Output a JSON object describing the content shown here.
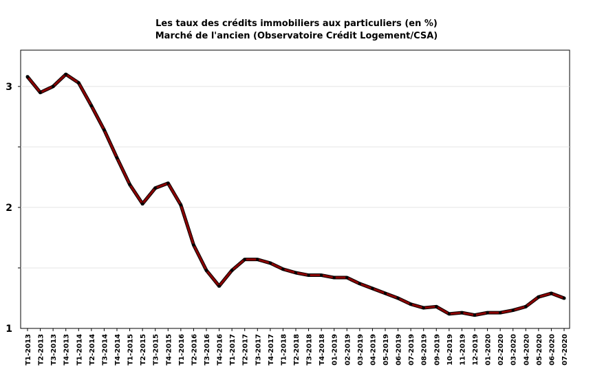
{
  "chart_data": {
    "type": "line",
    "title": "Les taux des crédits immobiliers aux particuliers (en %)",
    "subtitle": "Marché de l'ancien (Observatoire Crédit Logement/CSA)",
    "ylim": [
      1,
      3.3
    ],
    "yticks": [
      1,
      2,
      3
    ],
    "grid": true,
    "categories": [
      "T1-2013",
      "T2-2013",
      "T3-2013",
      "T4-2013",
      "T1-2014",
      "T2-2014",
      "T3-2014",
      "T4-2014",
      "T1-2015",
      "T2-2015",
      "T3-2015",
      "T4-2015",
      "T1-2016",
      "T2-2016",
      "T3-2016",
      "T4-2016",
      "T1-2017",
      "T2-2017",
      "T3-2017",
      "T4-2017",
      "T1-2018",
      "T2-2018",
      "T3-2018",
      "T4-2018",
      "01-2019",
      "02-2019",
      "03-2019",
      "04-2019",
      "05-2019",
      "06-2019",
      "07-2019",
      "08-2019",
      "09-2019",
      "10-2019",
      "11-2019",
      "12-2019",
      "01-2020",
      "02-2020",
      "03-2020",
      "04-2020",
      "05-2020",
      "06-2020",
      "07-2020"
    ],
    "series": [
      {
        "values": [
          3.08,
          2.95,
          3.0,
          3.1,
          3.03,
          2.84,
          2.64,
          2.41,
          2.19,
          2.03,
          2.16,
          2.2,
          2.02,
          1.69,
          1.48,
          1.35,
          1.48,
          1.57,
          1.57,
          1.54,
          1.49,
          1.46,
          1.44,
          1.44,
          1.42,
          1.42,
          1.37,
          1.33,
          1.29,
          1.25,
          1.2,
          1.17,
          1.18,
          1.12,
          1.13,
          1.11,
          1.13,
          1.13,
          1.15,
          1.18,
          1.26,
          1.29,
          1.25
        ],
        "color": "#8B0000"
      }
    ]
  }
}
